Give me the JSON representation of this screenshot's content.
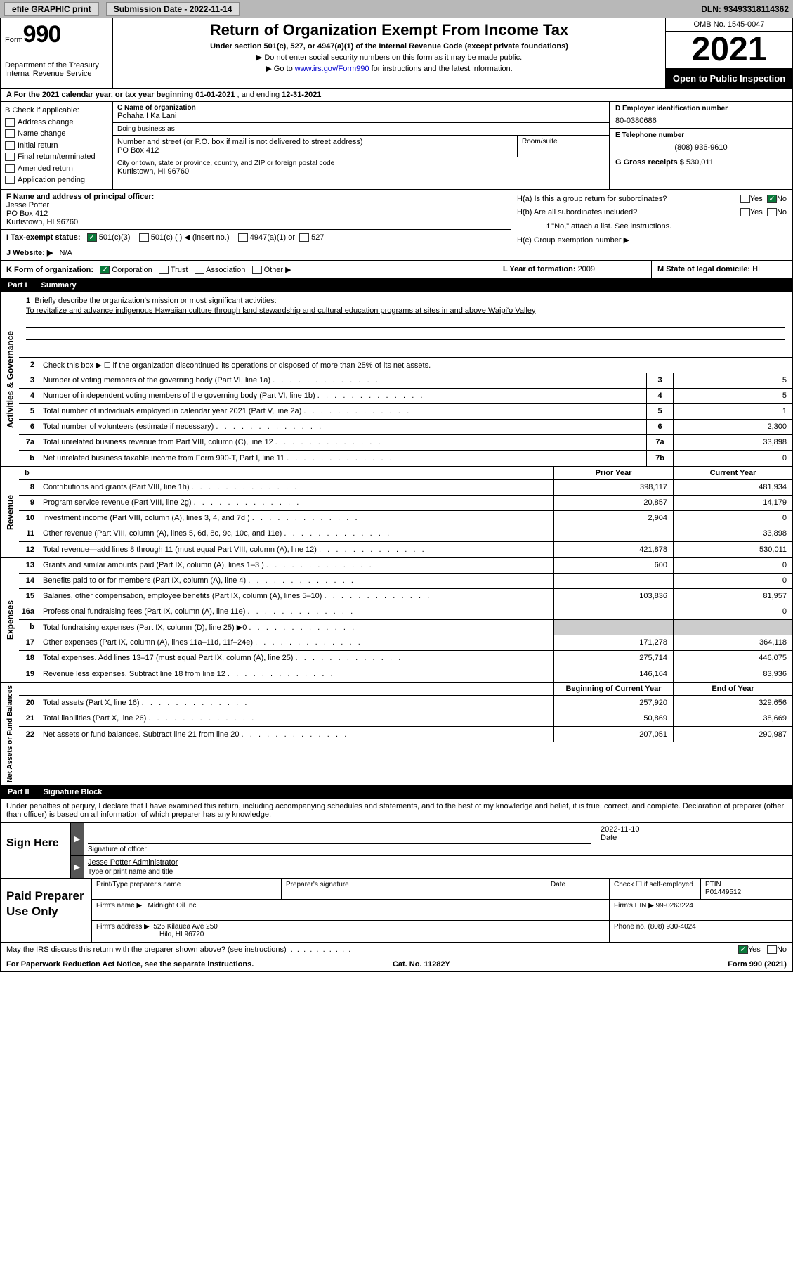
{
  "topbar": {
    "efile": "efile GRAPHIC print",
    "subdate_label": "Submission Date - ",
    "subdate": "2022-11-14",
    "dln_label": "DLN: ",
    "dln": "93493318114362"
  },
  "header": {
    "form_label": "Form",
    "form_num": "990",
    "dept": "Department of the Treasury",
    "irs": "Internal Revenue Service",
    "title": "Return of Organization Exempt From Income Tax",
    "subtitle": "Under section 501(c), 527, or 4947(a)(1) of the Internal Revenue Code (except private foundations)",
    "note1": "▶ Do not enter social security numbers on this form as it may be made public.",
    "note2_pre": "▶ Go to ",
    "note2_link": "www.irs.gov/Form990",
    "note2_post": " for instructions and the latest information.",
    "omb": "OMB No. 1545-0047",
    "year": "2021",
    "inspect": "Open to Public Inspection"
  },
  "rowA": {
    "text_pre": "A For the 2021 calendar year, or tax year beginning ",
    "begin": "01-01-2021",
    "mid": " , and ending ",
    "end": "12-31-2021"
  },
  "colB": {
    "heading": "B Check if applicable:",
    "opts": [
      "Address change",
      "Name change",
      "Initial return",
      "Final return/terminated",
      "Amended return",
      "Application pending"
    ]
  },
  "colC": {
    "name_label": "C Name of organization",
    "name": "Pohaha I Ka Lani",
    "dba_label": "Doing business as",
    "dba": "",
    "addr_label": "Number and street (or P.O. box if mail is not delivered to street address)",
    "addr": "PO Box 412",
    "room_label": "Room/suite",
    "city_label": "City or town, state or province, country, and ZIP or foreign postal code",
    "city": "Kurtistown, HI  96760"
  },
  "colD": {
    "ein_label": "D Employer identification number",
    "ein": "80-0380686",
    "phone_label": "E Telephone number",
    "phone": "(808) 936-9610",
    "gross_label": "G Gross receipts $ ",
    "gross": "530,011"
  },
  "sectionF": {
    "label": "F  Name and address of principal officer:",
    "name": "Jesse Potter",
    "addr1": "PO Box 412",
    "addr2": "Kurtistown, HI  96760"
  },
  "sectionI": {
    "label": "I   Tax-exempt status:",
    "opt1": "501(c)(3)",
    "opt2": "501(c) (  ) ◀ (insert no.)",
    "opt3": "4947(a)(1) or",
    "opt4": "527"
  },
  "sectionJ": {
    "label": "J   Website: ▶",
    "val": "N/A"
  },
  "sectionH": {
    "a": "H(a)  Is this a group return for subordinates?",
    "b": "H(b)  Are all subordinates included?",
    "bnote": "If \"No,\" attach a list. See instructions.",
    "c": "H(c)  Group exemption number ▶",
    "yes": "Yes",
    "no": "No"
  },
  "sectionK": {
    "label": "K Form of organization:",
    "opts": [
      "Corporation",
      "Trust",
      "Association",
      "Other ▶"
    ]
  },
  "sectionL": {
    "label": "L Year of formation: ",
    "val": "2009"
  },
  "sectionM": {
    "label": "M State of legal domicile: ",
    "val": "HI"
  },
  "part1": {
    "label": "Part I",
    "title": "Summary"
  },
  "vtabs": {
    "ag": "Activities & Governance",
    "rev": "Revenue",
    "exp": "Expenses",
    "net": "Net Assets or Fund Balances"
  },
  "line1": {
    "num": "1",
    "label": "Briefly describe the organization's mission or most significant activities:",
    "mission": "To revitalize and advance indigenous Hawaiian culture through land stewardship and cultural education programs at sites in and above Waipi'o Valley"
  },
  "line2": {
    "num": "2",
    "text": "Check this box ▶ ☐  if the organization discontinued its operations or disposed of more than 25% of its net assets."
  },
  "lines_ag": [
    {
      "num": "3",
      "desc": "Number of voting members of the governing body (Part VI, line 1a)",
      "box": "3",
      "val": "5"
    },
    {
      "num": "4",
      "desc": "Number of independent voting members of the governing body (Part VI, line 1b)",
      "box": "4",
      "val": "5"
    },
    {
      "num": "5",
      "desc": "Total number of individuals employed in calendar year 2021 (Part V, line 2a)",
      "box": "5",
      "val": "1"
    },
    {
      "num": "6",
      "desc": "Total number of volunteers (estimate if necessary)",
      "box": "6",
      "val": "2,300"
    },
    {
      "num": "7a",
      "desc": "Total unrelated business revenue from Part VIII, column (C), line 12",
      "box": "7a",
      "val": "33,898"
    },
    {
      "num": "b",
      "desc": "Net unrelated business taxable income from Form 990-T, Part I, line 11",
      "box": "7b",
      "val": "0"
    }
  ],
  "col_headers": {
    "prior": "Prior Year",
    "current": "Current Year",
    "bcy": "Beginning of Current Year",
    "eoy": "End of Year"
  },
  "lines_rev": [
    {
      "num": "8",
      "desc": "Contributions and grants (Part VIII, line 1h)",
      "prior": "398,117",
      "cur": "481,934"
    },
    {
      "num": "9",
      "desc": "Program service revenue (Part VIII, line 2g)",
      "prior": "20,857",
      "cur": "14,179"
    },
    {
      "num": "10",
      "desc": "Investment income (Part VIII, column (A), lines 3, 4, and 7d )",
      "prior": "2,904",
      "cur": "0"
    },
    {
      "num": "11",
      "desc": "Other revenue (Part VIII, column (A), lines 5, 6d, 8c, 9c, 10c, and 11e)",
      "prior": "",
      "cur": "33,898"
    },
    {
      "num": "12",
      "desc": "Total revenue—add lines 8 through 11 (must equal Part VIII, column (A), line 12)",
      "prior": "421,878",
      "cur": "530,011"
    }
  ],
  "lines_exp": [
    {
      "num": "13",
      "desc": "Grants and similar amounts paid (Part IX, column (A), lines 1–3 )",
      "prior": "600",
      "cur": "0"
    },
    {
      "num": "14",
      "desc": "Benefits paid to or for members (Part IX, column (A), line 4)",
      "prior": "",
      "cur": "0"
    },
    {
      "num": "15",
      "desc": "Salaries, other compensation, employee benefits (Part IX, column (A), lines 5–10)",
      "prior": "103,836",
      "cur": "81,957"
    },
    {
      "num": "16a",
      "desc": "Professional fundraising fees (Part IX, column (A), line 11e)",
      "prior": "",
      "cur": "0"
    },
    {
      "num": "b",
      "desc": "Total fundraising expenses (Part IX, column (D), line 25) ▶0",
      "prior": "GRAY",
      "cur": "GRAY"
    },
    {
      "num": "17",
      "desc": "Other expenses (Part IX, column (A), lines 11a–11d, 11f–24e)",
      "prior": "171,278",
      "cur": "364,118"
    },
    {
      "num": "18",
      "desc": "Total expenses. Add lines 13–17 (must equal Part IX, column (A), line 25)",
      "prior": "275,714",
      "cur": "446,075"
    },
    {
      "num": "19",
      "desc": "Revenue less expenses. Subtract line 18 from line 12",
      "prior": "146,164",
      "cur": "83,936"
    }
  ],
  "lines_net": [
    {
      "num": "20",
      "desc": "Total assets (Part X, line 16)",
      "prior": "257,920",
      "cur": "329,656"
    },
    {
      "num": "21",
      "desc": "Total liabilities (Part X, line 26)",
      "prior": "50,869",
      "cur": "38,669"
    },
    {
      "num": "22",
      "desc": "Net assets or fund balances. Subtract line 21 from line 20",
      "prior": "207,051",
      "cur": "290,987"
    }
  ],
  "part2": {
    "label": "Part II",
    "title": "Signature Block"
  },
  "sig_intro": "Under penalties of perjury, I declare that I have examined this return, including accompanying schedules and statements, and to the best of my knowledge and belief, it is true, correct, and complete. Declaration of preparer (other than officer) is based on all information of which preparer has any knowledge.",
  "sign": {
    "here": "Sign Here",
    "sig_label": "Signature of officer",
    "date": "2022-11-10",
    "date_label": "Date",
    "name": "Jesse Potter  Administrator",
    "name_label": "Type or print name and title"
  },
  "prep": {
    "left": "Paid Preparer Use Only",
    "print_label": "Print/Type preparer's name",
    "sig_label": "Preparer's signature",
    "date_label": "Date",
    "check_label": "Check ☐ if self-employed",
    "ptin_label": "PTIN",
    "ptin": "P01449512",
    "firm_name_label": "Firm's name   ▶",
    "firm_name": "Midnight Oil Inc",
    "firm_ein_label": "Firm's EIN ▶",
    "firm_ein": "99-0263224",
    "firm_addr_label": "Firm's address ▶",
    "firm_addr1": "525 Kilauea Ave 250",
    "firm_addr2": "Hilo, HI  96720",
    "phone_label": "Phone no. ",
    "phone": "(808) 930-4024"
  },
  "discuss": {
    "text": "May the IRS discuss this return with the preparer shown above? (see instructions)",
    "yes": "Yes",
    "no": "No"
  },
  "footer": {
    "left": "For Paperwork Reduction Act Notice, see the separate instructions.",
    "mid": "Cat. No. 11282Y",
    "right": "Form 990 (2021)"
  }
}
